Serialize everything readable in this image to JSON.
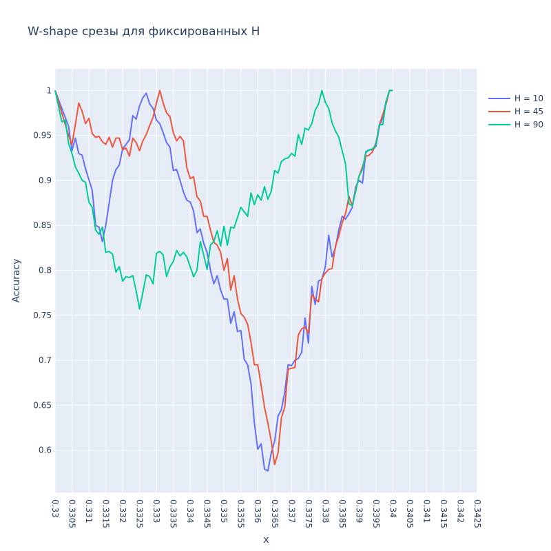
{
  "chart_data": {
    "type": "line",
    "title": "W-shape срезы для фиксированных H",
    "xlabel": "x",
    "ylabel": "Accuracy",
    "xlim": [
      0.33,
      0.3425
    ],
    "ylim": [
      0.553,
      1.024
    ],
    "x_ticks": [
      "0.33",
      "0.3305",
      "0.331",
      "0.3315",
      "0.332",
      "0.3325",
      "0.333",
      "0.3335",
      "0.334",
      "0.3345",
      "0.335",
      "0.3355",
      "0.336",
      "0.3365",
      "0.337",
      "0.3375",
      "0.338",
      "0.3385",
      "0.339",
      "0.3395",
      "0.34",
      "0.3405",
      "0.341",
      "0.3415",
      "0.342",
      "0.3425"
    ],
    "y_ticks": [
      "0.6",
      "0.65",
      "0.7",
      "0.75",
      "0.8",
      "0.85",
      "0.9",
      "0.95",
      "1"
    ],
    "grid": true,
    "legend_position": "top-right",
    "plot_bg": "#e5ecf6",
    "series": [
      {
        "name": "H = 10",
        "color": "#636efa",
        "points": [
          [
            0.33,
            1.0
          ],
          [
            0.3302,
            0.98
          ],
          [
            0.3304,
            0.96
          ],
          [
            0.3305,
            0.933
          ],
          [
            0.3306,
            0.947
          ],
          [
            0.3307,
            0.93
          ],
          [
            0.3308,
            0.928
          ],
          [
            0.3309,
            0.913
          ],
          [
            0.3311,
            0.889
          ],
          [
            0.3312,
            0.85
          ],
          [
            0.3313,
            0.848
          ],
          [
            0.3314,
            0.832
          ],
          [
            0.3315,
            0.85
          ],
          [
            0.3317,
            0.9
          ],
          [
            0.3318,
            0.912
          ],
          [
            0.3319,
            0.917
          ],
          [
            0.332,
            0.935
          ],
          [
            0.3322,
            0.945
          ],
          [
            0.3323,
            0.972
          ],
          [
            0.3324,
            0.968
          ],
          [
            0.3325,
            0.983
          ],
          [
            0.3326,
            0.992
          ],
          [
            0.3327,
            0.997
          ],
          [
            0.3328,
            0.985
          ],
          [
            0.3329,
            0.98
          ],
          [
            0.333,
            0.967
          ],
          [
            0.3331,
            0.963
          ],
          [
            0.3332,
            0.953
          ],
          [
            0.3333,
            0.942
          ],
          [
            0.3334,
            0.937
          ],
          [
            0.3335,
            0.911
          ],
          [
            0.3336,
            0.912
          ],
          [
            0.3337,
            0.9
          ],
          [
            0.3338,
            0.887
          ],
          [
            0.3339,
            0.878
          ],
          [
            0.334,
            0.876
          ],
          [
            0.3341,
            0.866
          ],
          [
            0.3342,
            0.842
          ],
          [
            0.3343,
            0.846
          ],
          [
            0.3344,
            0.83
          ],
          [
            0.3345,
            0.82
          ],
          [
            0.3346,
            0.8
          ],
          [
            0.3347,
            0.785
          ],
          [
            0.3348,
            0.794
          ],
          [
            0.3349,
            0.778
          ],
          [
            0.335,
            0.768
          ],
          [
            0.3351,
            0.768
          ],
          [
            0.3352,
            0.741
          ],
          [
            0.3353,
            0.754
          ],
          [
            0.3354,
            0.732
          ],
          [
            0.3355,
            0.733
          ],
          [
            0.3356,
            0.701
          ],
          [
            0.3357,
            0.695
          ],
          [
            0.3358,
            0.674
          ],
          [
            0.3359,
            0.63
          ],
          [
            0.336,
            0.601
          ],
          [
            0.3361,
            0.607
          ],
          [
            0.3362,
            0.579
          ],
          [
            0.3363,
            0.577
          ],
          [
            0.3364,
            0.597
          ],
          [
            0.3365,
            0.61
          ],
          [
            0.3366,
            0.638
          ],
          [
            0.3367,
            0.645
          ],
          [
            0.3368,
            0.665
          ],
          [
            0.3369,
            0.695
          ],
          [
            0.337,
            0.694
          ],
          [
            0.3371,
            0.7
          ],
          [
            0.3372,
            0.702
          ],
          [
            0.3373,
            0.709
          ],
          [
            0.3374,
            0.747
          ],
          [
            0.3375,
            0.719
          ],
          [
            0.3376,
            0.782
          ],
          [
            0.3377,
            0.762
          ],
          [
            0.3378,
            0.788
          ],
          [
            0.3379,
            0.79
          ],
          [
            0.338,
            0.804
          ],
          [
            0.3381,
            0.839
          ],
          [
            0.3382,
            0.815
          ],
          [
            0.3383,
            0.825
          ],
          [
            0.3384,
            0.845
          ],
          [
            0.3385,
            0.86
          ],
          [
            0.3386,
            0.857
          ],
          [
            0.3387,
            0.863
          ],
          [
            0.3388,
            0.87
          ],
          [
            0.3389,
            0.893
          ],
          [
            0.339,
            0.9
          ],
          [
            0.3391,
            0.897
          ],
          [
            0.3392,
            0.931
          ],
          [
            0.3393,
            0.934
          ],
          [
            0.3394,
            0.934
          ],
          [
            0.3395,
            0.938
          ],
          [
            0.3396,
            0.96
          ],
          [
            0.3397,
            0.97
          ],
          [
            0.3398,
            0.988
          ],
          [
            0.3399,
            1.0
          ],
          [
            0.34,
            1.0
          ]
        ]
      },
      {
        "name": "H = 45",
        "color": "#ef553b",
        "points": [
          [
            0.33,
            1.0
          ],
          [
            0.3302,
            0.975
          ],
          [
            0.3303,
            0.962
          ],
          [
            0.3304,
            0.95
          ],
          [
            0.3305,
            0.94
          ],
          [
            0.3306,
            0.962
          ],
          [
            0.3307,
            0.986
          ],
          [
            0.3308,
            0.977
          ],
          [
            0.3309,
            0.963
          ],
          [
            0.331,
            0.969
          ],
          [
            0.3311,
            0.952
          ],
          [
            0.3312,
            0.948
          ],
          [
            0.3313,
            0.949
          ],
          [
            0.3314,
            0.943
          ],
          [
            0.3315,
            0.94
          ],
          [
            0.3316,
            0.948
          ],
          [
            0.3317,
            0.937
          ],
          [
            0.3318,
            0.947
          ],
          [
            0.3319,
            0.947
          ],
          [
            0.332,
            0.934
          ],
          [
            0.3321,
            0.936
          ],
          [
            0.3322,
            0.927
          ],
          [
            0.3323,
            0.947
          ],
          [
            0.3324,
            0.942
          ],
          [
            0.3325,
            0.933
          ],
          [
            0.3326,
            0.944
          ],
          [
            0.3327,
            0.951
          ],
          [
            0.3328,
            0.961
          ],
          [
            0.3329,
            0.97
          ],
          [
            0.333,
            0.986
          ],
          [
            0.3331,
            1.0
          ],
          [
            0.3332,
            0.986
          ],
          [
            0.3333,
            0.975
          ],
          [
            0.3334,
            0.971
          ],
          [
            0.3335,
            0.953
          ],
          [
            0.3336,
            0.944
          ],
          [
            0.3337,
            0.949
          ],
          [
            0.3338,
            0.944
          ],
          [
            0.3339,
            0.914
          ],
          [
            0.334,
            0.902
          ],
          [
            0.3341,
            0.904
          ],
          [
            0.3342,
            0.882
          ],
          [
            0.3343,
            0.877
          ],
          [
            0.3344,
            0.86
          ],
          [
            0.3345,
            0.86
          ],
          [
            0.3346,
            0.845
          ],
          [
            0.3347,
            0.831
          ],
          [
            0.3348,
            0.828
          ],
          [
            0.3349,
            0.82
          ],
          [
            0.335,
            0.8
          ],
          [
            0.3351,
            0.813
          ],
          [
            0.3352,
            0.778
          ],
          [
            0.3353,
            0.794
          ],
          [
            0.3354,
            0.768
          ],
          [
            0.3355,
            0.752
          ],
          [
            0.3356,
            0.748
          ],
          [
            0.3357,
            0.74
          ],
          [
            0.3358,
            0.72
          ],
          [
            0.3359,
            0.695
          ],
          [
            0.336,
            0.695
          ],
          [
            0.3361,
            0.672
          ],
          [
            0.3362,
            0.648
          ],
          [
            0.3363,
            0.63
          ],
          [
            0.3364,
            0.61
          ],
          [
            0.3365,
            0.584
          ],
          [
            0.3366,
            0.597
          ],
          [
            0.3367,
            0.636
          ],
          [
            0.3368,
            0.648
          ],
          [
            0.3369,
            0.69
          ],
          [
            0.337,
            0.691
          ],
          [
            0.3371,
            0.692
          ],
          [
            0.3372,
            0.728
          ],
          [
            0.3373,
            0.735
          ],
          [
            0.3374,
            0.737
          ],
          [
            0.3375,
            0.73
          ],
          [
            0.3376,
            0.773
          ],
          [
            0.3377,
            0.768
          ],
          [
            0.3378,
            0.765
          ],
          [
            0.3379,
            0.791
          ],
          [
            0.338,
            0.797
          ],
          [
            0.3381,
            0.801
          ],
          [
            0.3382,
            0.802
          ],
          [
            0.3383,
            0.827
          ],
          [
            0.3384,
            0.838
          ],
          [
            0.3385,
            0.853
          ],
          [
            0.3386,
            0.863
          ],
          [
            0.3387,
            0.882
          ],
          [
            0.3388,
            0.872
          ],
          [
            0.3389,
            0.89
          ],
          [
            0.339,
            0.905
          ],
          [
            0.3391,
            0.915
          ],
          [
            0.3392,
            0.927
          ],
          [
            0.3393,
            0.928
          ],
          [
            0.3394,
            0.932
          ],
          [
            0.3395,
            0.942
          ],
          [
            0.3396,
            0.962
          ],
          [
            0.3397,
            0.973
          ],
          [
            0.3398,
            0.985
          ],
          [
            0.3399,
            1.0
          ],
          [
            0.34,
            1.0
          ]
        ]
      },
      {
        "name": "H = 90",
        "color": "#00cc96",
        "points": [
          [
            0.33,
            1.0
          ],
          [
            0.3302,
            0.965
          ],
          [
            0.3303,
            0.967
          ],
          [
            0.3304,
            0.941
          ],
          [
            0.3305,
            0.93
          ],
          [
            0.3306,
            0.915
          ],
          [
            0.3307,
            0.908
          ],
          [
            0.3308,
            0.9
          ],
          [
            0.3309,
            0.898
          ],
          [
            0.331,
            0.876
          ],
          [
            0.3311,
            0.87
          ],
          [
            0.3312,
            0.845
          ],
          [
            0.3313,
            0.84
          ],
          [
            0.3314,
            0.848
          ],
          [
            0.3315,
            0.82
          ],
          [
            0.3316,
            0.821
          ],
          [
            0.3317,
            0.818
          ],
          [
            0.3318,
            0.798
          ],
          [
            0.3319,
            0.804
          ],
          [
            0.332,
            0.788
          ],
          [
            0.3321,
            0.793
          ],
          [
            0.3322,
            0.792
          ],
          [
            0.3323,
            0.794
          ],
          [
            0.3324,
            0.777
          ],
          [
            0.3325,
            0.757
          ],
          [
            0.3326,
            0.776
          ],
          [
            0.3327,
            0.795
          ],
          [
            0.3328,
            0.793
          ],
          [
            0.3329,
            0.785
          ],
          [
            0.333,
            0.819
          ],
          [
            0.3331,
            0.821
          ],
          [
            0.3332,
            0.817
          ],
          [
            0.3333,
            0.793
          ],
          [
            0.3334,
            0.804
          ],
          [
            0.3335,
            0.81
          ],
          [
            0.3336,
            0.822
          ],
          [
            0.3337,
            0.816
          ],
          [
            0.3338,
            0.82
          ],
          [
            0.3339,
            0.815
          ],
          [
            0.334,
            0.804
          ],
          [
            0.3341,
            0.793
          ],
          [
            0.3342,
            0.8
          ],
          [
            0.3343,
            0.832
          ],
          [
            0.3344,
            0.817
          ],
          [
            0.3345,
            0.801
          ],
          [
            0.3346,
            0.828
          ],
          [
            0.3347,
            0.832
          ],
          [
            0.3348,
            0.844
          ],
          [
            0.3349,
            0.827
          ],
          [
            0.335,
            0.849
          ],
          [
            0.3351,
            0.828
          ],
          [
            0.3352,
            0.848
          ],
          [
            0.3353,
            0.847
          ],
          [
            0.3354,
            0.859
          ],
          [
            0.3355,
            0.87
          ],
          [
            0.3356,
            0.865
          ],
          [
            0.3357,
            0.86
          ],
          [
            0.3358,
            0.886
          ],
          [
            0.3359,
            0.873
          ],
          [
            0.336,
            0.884
          ],
          [
            0.3361,
            0.878
          ],
          [
            0.3362,
            0.893
          ],
          [
            0.3363,
            0.879
          ],
          [
            0.3364,
            0.888
          ],
          [
            0.3365,
            0.911
          ],
          [
            0.3366,
            0.908
          ],
          [
            0.3367,
            0.921
          ],
          [
            0.3368,
            0.924
          ],
          [
            0.3369,
            0.925
          ],
          [
            0.337,
            0.93
          ],
          [
            0.3371,
            0.927
          ],
          [
            0.3372,
            0.951
          ],
          [
            0.3373,
            0.94
          ],
          [
            0.3374,
            0.958
          ],
          [
            0.3375,
            0.956
          ],
          [
            0.3376,
            0.963
          ],
          [
            0.3377,
            0.978
          ],
          [
            0.3378,
            0.985
          ],
          [
            0.3379,
            1.0
          ],
          [
            0.338,
            0.987
          ],
          [
            0.3381,
            0.98
          ],
          [
            0.3382,
            0.964
          ],
          [
            0.3383,
            0.955
          ],
          [
            0.3384,
            0.948
          ],
          [
            0.3385,
            0.933
          ],
          [
            0.3386,
            0.918
          ],
          [
            0.3387,
            0.874
          ],
          [
            0.3388,
            0.872
          ],
          [
            0.3389,
            0.888
          ],
          [
            0.339,
            0.905
          ],
          [
            0.3391,
            0.912
          ],
          [
            0.3392,
            0.932
          ],
          [
            0.3393,
            0.934
          ],
          [
            0.3394,
            0.935
          ],
          [
            0.3395,
            0.94
          ],
          [
            0.3396,
            0.962
          ],
          [
            0.3397,
            0.962
          ],
          [
            0.3398,
            0.988
          ],
          [
            0.3399,
            1.0
          ],
          [
            0.34,
            1.0
          ]
        ]
      }
    ]
  }
}
